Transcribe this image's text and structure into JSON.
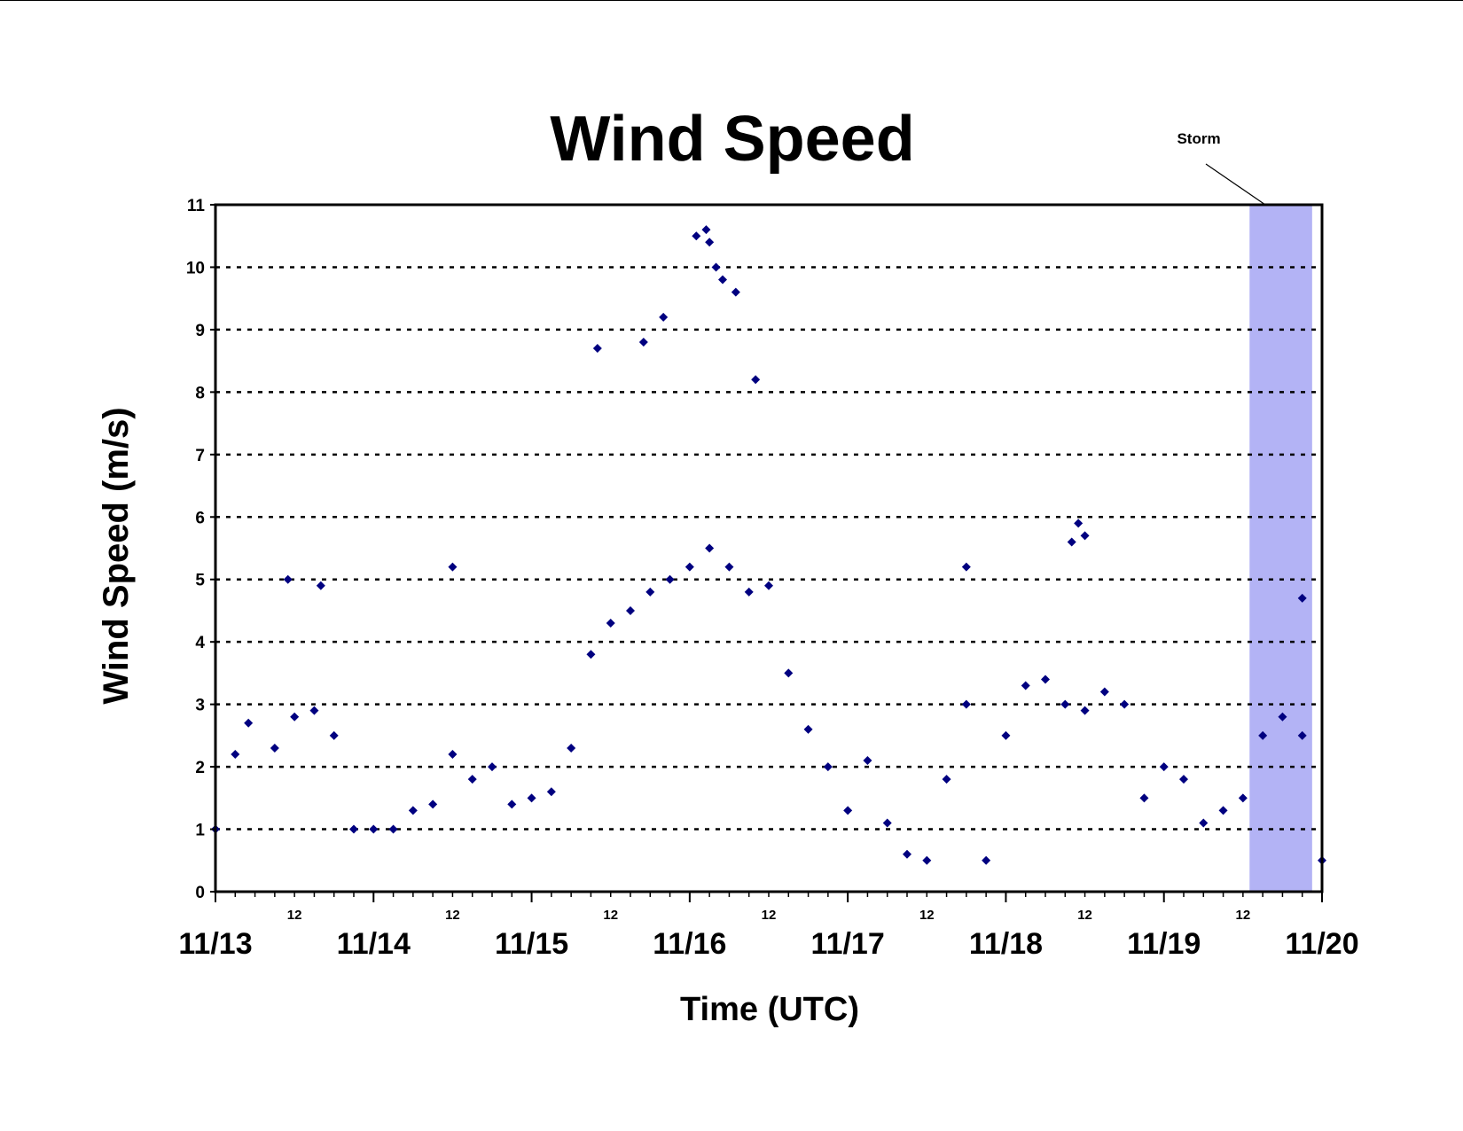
{
  "chart_data": {
    "type": "scatter",
    "title": "Wind Speed",
    "xlabel": "Time (UTC)",
    "ylabel": "Wind Speed (m/s)",
    "ylim": [
      0,
      11
    ],
    "yticks": [
      0,
      1,
      2,
      3,
      4,
      5,
      6,
      7,
      8,
      9,
      10,
      11
    ],
    "xlim": [
      "11/13 00:00",
      "11/20 00:00"
    ],
    "x_major_tick_labels": [
      "11/13",
      "11/14",
      "11/15",
      "11/16",
      "11/17",
      "11/18",
      "11/19",
      "11/20"
    ],
    "x_minor_tick_label": "12",
    "grid": "horizontal dashed",
    "marker": "diamond",
    "series_color": "#000080",
    "series": [
      {
        "points": [
          [
            "11/13 00:00",
            1.0
          ],
          [
            "11/13 03:00",
            2.2
          ],
          [
            "11/13 05:00",
            2.7
          ],
          [
            "11/13 09:00",
            2.3
          ],
          [
            "11/13 12:00",
            2.8
          ],
          [
            "11/13 15:00",
            2.9
          ],
          [
            "11/13 18:00",
            2.5
          ],
          [
            "11/13 21:00",
            1.0
          ],
          [
            "11/14 00:00",
            1.0
          ],
          [
            "11/14 03:00",
            1.0
          ],
          [
            "11/14 06:00",
            1.3
          ],
          [
            "11/14 09:00",
            1.4
          ],
          [
            "11/14 12:00",
            2.2
          ],
          [
            "11/14 15:00",
            1.8
          ],
          [
            "11/14 18:00",
            2.0
          ],
          [
            "11/14 21:00",
            1.4
          ],
          [
            "11/15 00:00",
            1.5
          ],
          [
            "11/15 03:00",
            1.6
          ],
          [
            "11/15 06:00",
            2.3
          ],
          [
            "11/15 09:00",
            3.8
          ],
          [
            "11/15 12:00",
            4.3
          ],
          [
            "11/15 15:00",
            4.5
          ],
          [
            "11/15 18:00",
            4.8
          ],
          [
            "11/15 21:00",
            5.0
          ],
          [
            "11/16 00:00",
            5.2
          ],
          [
            "11/16 03:00",
            5.5
          ],
          [
            "11/16 06:00",
            5.2
          ],
          [
            "11/16 09:00",
            4.8
          ],
          [
            "11/16 12:00",
            4.9
          ],
          [
            "11/16 15:00",
            3.5
          ],
          [
            "11/16 18:00",
            2.6
          ],
          [
            "11/16 21:00",
            2.0
          ],
          [
            "11/17 00:00",
            1.3
          ],
          [
            "11/17 03:00",
            2.1
          ],
          [
            "11/17 06:00",
            1.1
          ],
          [
            "11/17 09:00",
            0.6
          ],
          [
            "11/17 12:00",
            0.5
          ],
          [
            "11/17 15:00",
            1.8
          ],
          [
            "11/17 18:00",
            3.0
          ],
          [
            "11/17 21:00",
            0.5
          ],
          [
            "11/18 00:00",
            2.5
          ],
          [
            "11/18 03:00",
            3.3
          ],
          [
            "11/18 06:00",
            3.4
          ],
          [
            "11/18 09:00",
            3.0
          ],
          [
            "11/18 12:00",
            2.9
          ],
          [
            "11/18 15:00",
            3.2
          ],
          [
            "11/18 18:00",
            3.0
          ],
          [
            "11/18 21:00",
            1.5
          ],
          [
            "11/19 00:00",
            2.0
          ],
          [
            "11/19 03:00",
            1.8
          ],
          [
            "11/19 06:00",
            1.1
          ],
          [
            "11/19 09:00",
            1.3
          ],
          [
            "11/19 12:00",
            1.5
          ],
          [
            "11/19 15:00",
            2.5
          ],
          [
            "11/19 18:00",
            2.8
          ],
          [
            "11/19 21:00",
            2.5
          ],
          [
            "11/20 00:00",
            0.5
          ],
          [
            "11/16 01:00",
            10.5
          ],
          [
            "11/16 02:30",
            10.6
          ],
          [
            "11/16 03:00",
            10.4
          ],
          [
            "11/16 04:00",
            10.0
          ],
          [
            "11/16 05:00",
            9.8
          ],
          [
            "11/16 07:00",
            9.6
          ],
          [
            "11/15 20:00",
            9.2
          ],
          [
            "11/15 17:00",
            8.8
          ],
          [
            "11/15 10:00",
            8.7
          ],
          [
            "11/16 10:00",
            8.2
          ],
          [
            "11/14 12:00",
            5.2
          ],
          [
            "11/18 11:00",
            5.9
          ],
          [
            "11/18 10:00",
            5.6
          ],
          [
            "11/19 21:00",
            4.7
          ],
          [
            "11/13 11:00",
            5.0
          ],
          [
            "11/13 16:00",
            4.9
          ],
          [
            "11/17 18:00",
            5.2
          ],
          [
            "11/18 12:00",
            5.7
          ]
        ]
      }
    ],
    "shaded_band": {
      "x_start": "11/19 13:00",
      "x_end": "11/19 22:30",
      "color": "#b3b3f5",
      "label": "Storm"
    }
  }
}
